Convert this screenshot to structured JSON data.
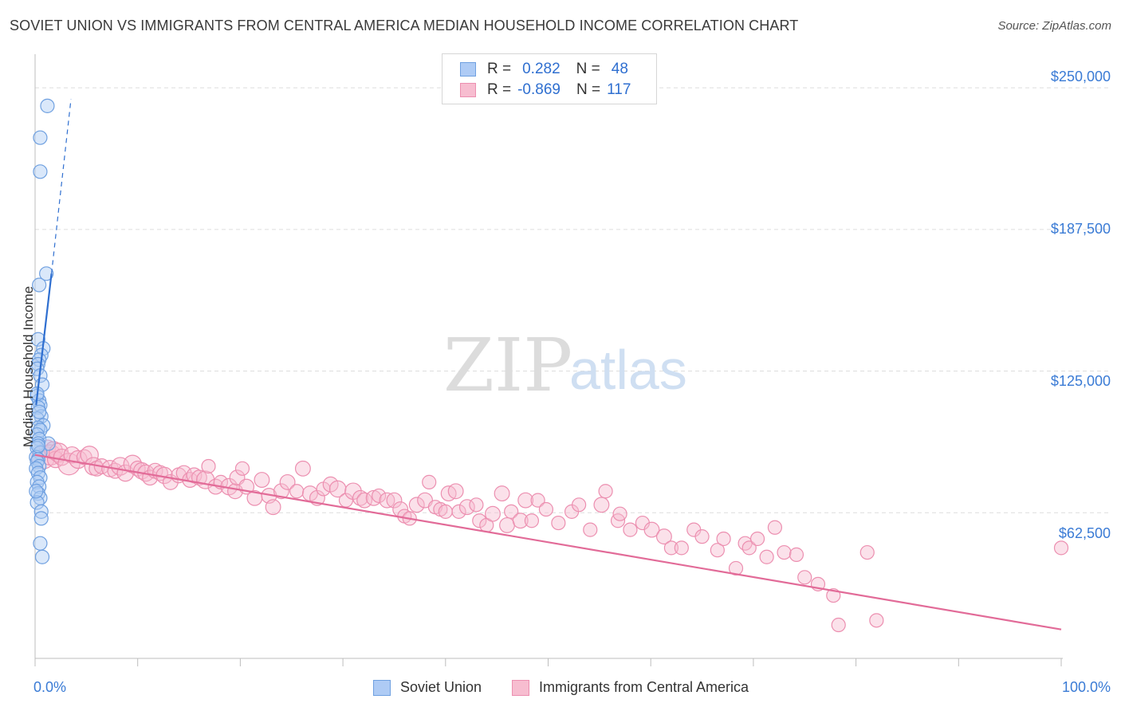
{
  "title": "SOVIET UNION VS IMMIGRANTS FROM CENTRAL AMERICA MEDIAN HOUSEHOLD INCOME CORRELATION CHART",
  "source": "Source: ZipAtlas.com",
  "watermark": {
    "zip": "ZIP",
    "atlas": "atlas"
  },
  "legend": {
    "rows": [
      {
        "r_label": "R =",
        "r_value": "0.282",
        "n_label": "N =",
        "n_value": "48"
      },
      {
        "r_label": "R =",
        "r_value": "-0.869",
        "n_label": "N =",
        "n_value": "117"
      }
    ]
  },
  "bottom_legend": {
    "series1": "Soviet Union",
    "series2": "Immigrants from Central America"
  },
  "colors": {
    "blue_fill": "#aecbf5",
    "blue_stroke": "#6fa0e0",
    "blue_line": "#2f6fd0",
    "pink_fill": "#f7bdd0",
    "pink_stroke": "#ec8fb0",
    "pink_line": "#e26b98",
    "tick_text": "#3a7bd5",
    "grid": "#dddddd"
  },
  "chart_data": {
    "type": "scatter",
    "title": "SOVIET UNION VS IMMIGRANTS FROM CENTRAL AMERICA MEDIAN HOUSEHOLD INCOME CORRELATION CHART",
    "xlabel": "",
    "ylabel": "Median Household Income",
    "xlim": [
      0,
      100
    ],
    "ylim": [
      0,
      262000
    ],
    "x_tick_labels": [
      "0.0%",
      "100.0%"
    ],
    "y_ticks": [
      62500,
      125000,
      187500,
      250000
    ],
    "y_tick_labels": [
      "$62,500",
      "$125,000",
      "$187,500",
      "$250,000"
    ],
    "grid": true,
    "series": [
      {
        "name": "Soviet Union",
        "color": "blue",
        "trend": {
          "x": [
            0.1,
            1.6
          ],
          "y": [
            110000,
            168000
          ],
          "dash_to": [
            3.5,
            245000
          ]
        },
        "points": [
          [
            1.2,
            242000,
            1.0
          ],
          [
            0.5,
            228000,
            1.0
          ],
          [
            0.5,
            213000,
            1.0
          ],
          [
            1.1,
            168000,
            1.0
          ],
          [
            0.4,
            163000,
            1.0
          ],
          [
            0.3,
            139000,
            1.0
          ],
          [
            0.8,
            135000,
            1.0
          ],
          [
            0.6,
            132000,
            1.0
          ],
          [
            0.4,
            130000,
            1.0
          ],
          [
            0.3,
            128000,
            1.0
          ],
          [
            0.2,
            126000,
            1.0
          ],
          [
            0.5,
            123000,
            1.0
          ],
          [
            0.7,
            119000,
            1.0
          ],
          [
            0.2,
            114000,
            1.0
          ],
          [
            0.4,
            112000,
            1.0
          ],
          [
            0.5,
            110000,
            1.0
          ],
          [
            0.3,
            109000,
            1.0
          ],
          [
            0.6,
            105000,
            1.0
          ],
          [
            0.2,
            104000,
            1.0
          ],
          [
            0.8,
            101000,
            1.0
          ],
          [
            0.3,
            100000,
            1.0
          ],
          [
            0.5,
            99000,
            1.0
          ],
          [
            0.2,
            97000,
            1.0
          ],
          [
            0.4,
            95000,
            1.0
          ],
          [
            1.3,
            93000,
            1.0
          ],
          [
            0.3,
            93000,
            1.0
          ],
          [
            0.2,
            91000,
            1.0
          ],
          [
            0.5,
            89000,
            1.0
          ],
          [
            0.1,
            87000,
            1.0
          ],
          [
            0.3,
            86000,
            1.0
          ],
          [
            0.2,
            85000,
            1.0
          ],
          [
            0.4,
            83000,
            1.0
          ],
          [
            0.1,
            82000,
            1.0
          ],
          [
            0.3,
            80000,
            1.0
          ],
          [
            0.5,
            78000,
            1.0
          ],
          [
            0.2,
            76000,
            1.0
          ],
          [
            0.4,
            74000,
            1.0
          ],
          [
            0.3,
            71000,
            1.0
          ],
          [
            0.5,
            69000,
            1.0
          ],
          [
            0.2,
            67000,
            1.0
          ],
          [
            0.6,
            63000,
            1.0
          ],
          [
            0.6,
            60000,
            1.0
          ],
          [
            0.5,
            49000,
            1.0
          ],
          [
            0.7,
            43000,
            1.0
          ],
          [
            0.1,
            72000,
            1.0
          ],
          [
            0.2,
            115000,
            1.0
          ],
          [
            0.4,
            107000,
            1.0
          ],
          [
            0.3,
            92000,
            1.0
          ]
        ]
      },
      {
        "name": "Immigrants from Central America",
        "color": "pink",
        "trend": {
          "x": [
            0.0,
            100.0
          ],
          "y": [
            88000,
            11000
          ]
        },
        "points": [
          [
            0.8,
            87000,
            1.7
          ],
          [
            1.2,
            91000,
            1.2
          ],
          [
            1.5,
            88000,
            1.5
          ],
          [
            1.8,
            90000,
            1.3
          ],
          [
            2.0,
            86000,
            1.2
          ],
          [
            2.3,
            89000,
            1.4
          ],
          [
            2.6,
            87000,
            1.2
          ],
          [
            3.3,
            84000,
            1.6
          ],
          [
            3.6,
            88000,
            1.2
          ],
          [
            4.2,
            86000,
            1.3
          ],
          [
            4.8,
            87000,
            1.1
          ],
          [
            5.3,
            88000,
            1.3
          ],
          [
            5.7,
            83000,
            1.3
          ],
          [
            6.0,
            82000,
            1.1
          ],
          [
            6.5,
            83000,
            1.1
          ],
          [
            7.3,
            82000,
            1.2
          ],
          [
            7.8,
            81000,
            1.1
          ],
          [
            8.3,
            83000,
            1.3
          ],
          [
            8.8,
            80000,
            1.2
          ],
          [
            9.5,
            84000,
            1.3
          ],
          [
            10.0,
            82000,
            1.1
          ],
          [
            10.4,
            81000,
            1.2
          ],
          [
            10.8,
            80000,
            1.2
          ],
          [
            11.2,
            78000,
            1.1
          ],
          [
            11.7,
            81000,
            1.1
          ],
          [
            12.2,
            80000,
            1.1
          ],
          [
            12.6,
            79000,
            1.2
          ],
          [
            13.2,
            76000,
            1.1
          ],
          [
            14.0,
            79000,
            1.1
          ],
          [
            14.5,
            80000,
            1.1
          ],
          [
            15.1,
            77000,
            1.1
          ],
          [
            15.5,
            79000,
            1.1
          ],
          [
            16.0,
            78000,
            1.1
          ],
          [
            16.6,
            77000,
            1.3
          ],
          [
            16.9,
            83000,
            1.0
          ],
          [
            17.6,
            74000,
            1.1
          ],
          [
            18.1,
            76000,
            1.0
          ],
          [
            18.9,
            74000,
            1.2
          ],
          [
            19.5,
            72000,
            1.1
          ],
          [
            19.7,
            78000,
            1.1
          ],
          [
            20.2,
            82000,
            1.0
          ],
          [
            20.6,
            74000,
            1.1
          ],
          [
            21.4,
            69000,
            1.1
          ],
          [
            22.1,
            77000,
            1.1
          ],
          [
            22.8,
            70000,
            1.1
          ],
          [
            23.2,
            65000,
            1.1
          ],
          [
            24.0,
            72000,
            1.1
          ],
          [
            24.6,
            76000,
            1.1
          ],
          [
            25.5,
            72000,
            1.0
          ],
          [
            26.1,
            82000,
            1.1
          ],
          [
            26.8,
            71000,
            1.1
          ],
          [
            27.5,
            69000,
            1.1
          ],
          [
            28.1,
            73000,
            1.0
          ],
          [
            28.8,
            75000,
            1.1
          ],
          [
            29.5,
            73000,
            1.2
          ],
          [
            30.3,
            68000,
            1.0
          ],
          [
            31.0,
            72000,
            1.2
          ],
          [
            31.7,
            69000,
            1.1
          ],
          [
            32.1,
            68000,
            1.1
          ],
          [
            33.0,
            69000,
            1.1
          ],
          [
            33.5,
            70000,
            1.0
          ],
          [
            34.3,
            68000,
            1.1
          ],
          [
            35.0,
            68000,
            1.1
          ],
          [
            35.6,
            64000,
            1.1
          ],
          [
            36.0,
            61000,
            1.0
          ],
          [
            36.5,
            60000,
            1.0
          ],
          [
            37.2,
            66000,
            1.1
          ],
          [
            38.0,
            68000,
            1.1
          ],
          [
            38.4,
            76000,
            1.0
          ],
          [
            39.0,
            65000,
            1.0
          ],
          [
            39.5,
            64000,
            1.0
          ],
          [
            40.0,
            63000,
            1.0
          ],
          [
            40.3,
            71000,
            1.1
          ],
          [
            41.0,
            72000,
            1.1
          ],
          [
            41.3,
            63000,
            1.0
          ],
          [
            42.1,
            65000,
            1.1
          ],
          [
            43.0,
            66000,
            1.0
          ],
          [
            43.3,
            59000,
            1.0
          ],
          [
            44.0,
            57000,
            1.0
          ],
          [
            44.6,
            62000,
            1.1
          ],
          [
            45.5,
            71000,
            1.1
          ],
          [
            46.0,
            57000,
            1.1
          ],
          [
            46.4,
            63000,
            1.0
          ],
          [
            47.3,
            59000,
            1.1
          ],
          [
            47.8,
            68000,
            1.1
          ],
          [
            48.4,
            59000,
            1.0
          ],
          [
            49.0,
            68000,
            1.0
          ],
          [
            49.8,
            64000,
            1.0
          ],
          [
            51.0,
            58000,
            1.0
          ],
          [
            52.3,
            63000,
            1.0
          ],
          [
            53.0,
            66000,
            1.0
          ],
          [
            54.1,
            55000,
            1.0
          ],
          [
            55.2,
            66000,
            1.1
          ],
          [
            55.6,
            72000,
            1.0
          ],
          [
            56.8,
            59000,
            1.0
          ],
          [
            57.0,
            62000,
            1.0
          ],
          [
            58.0,
            55000,
            1.0
          ],
          [
            59.2,
            58000,
            1.0
          ],
          [
            60.1,
            55000,
            1.1
          ],
          [
            61.3,
            52000,
            1.1
          ],
          [
            62.0,
            47000,
            1.0
          ],
          [
            63.0,
            47000,
            1.0
          ],
          [
            64.2,
            55000,
            1.0
          ],
          [
            65.0,
            52000,
            1.0
          ],
          [
            66.5,
            46000,
            1.0
          ],
          [
            67.1,
            51000,
            1.0
          ],
          [
            68.3,
            38000,
            1.0
          ],
          [
            69.2,
            49000,
            1.0
          ],
          [
            69.6,
            47000,
            1.0
          ],
          [
            70.4,
            51000,
            1.0
          ],
          [
            71.3,
            43000,
            1.0
          ],
          [
            72.1,
            56000,
            1.0
          ],
          [
            73.0,
            45000,
            1.0
          ],
          [
            74.2,
            44000,
            1.0
          ],
          [
            75.0,
            34000,
            1.0
          ],
          [
            76.3,
            31000,
            1.0
          ],
          [
            77.8,
            26000,
            1.0
          ],
          [
            78.3,
            13000,
            1.0
          ],
          [
            81.1,
            45000,
            1.0
          ],
          [
            82.0,
            15000,
            1.0
          ],
          [
            100.0,
            47000,
            1.0
          ]
        ]
      }
    ]
  }
}
